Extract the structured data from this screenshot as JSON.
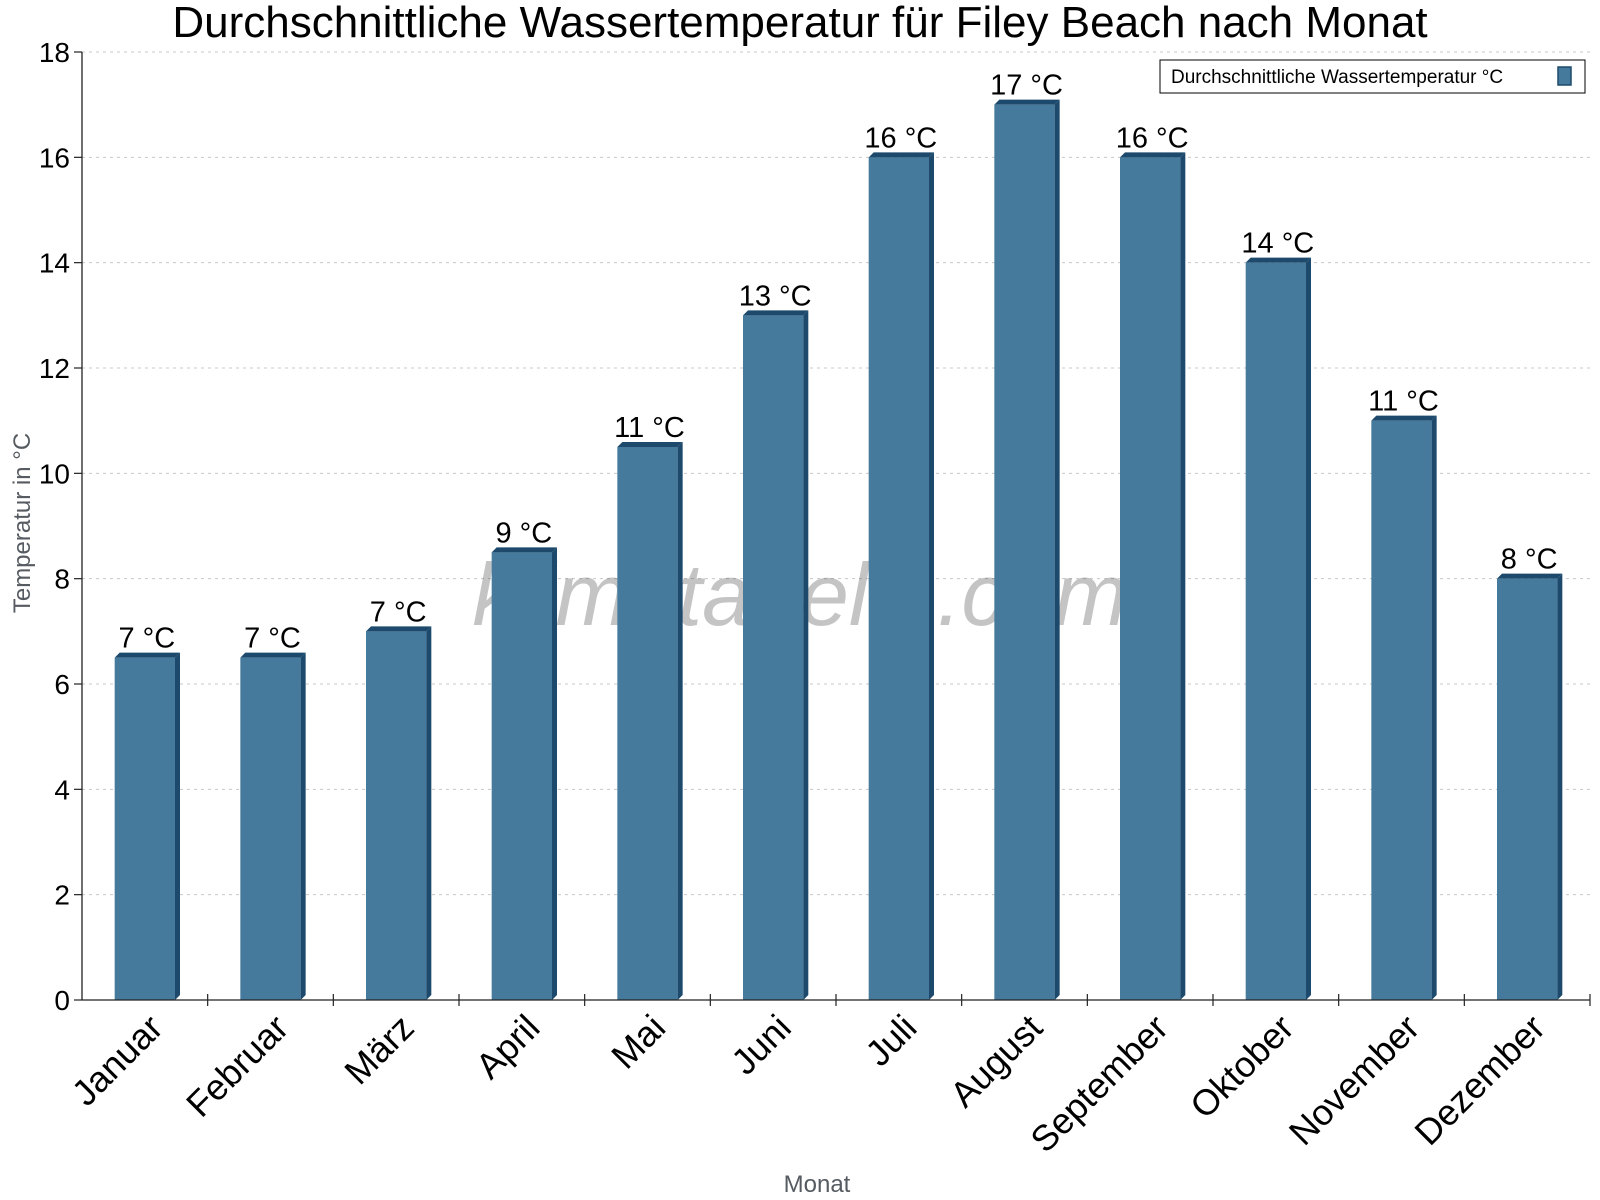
{
  "chart_data": {
    "type": "bar",
    "title": "Durchschnittliche Wassertemperatur für Filey Beach nach Monat",
    "xlabel": "Monat",
    "ylabel": "Temperatur in °C",
    "ylim": [
      0,
      18
    ],
    "yticks": [
      0,
      2,
      4,
      6,
      8,
      10,
      12,
      14,
      16,
      18
    ],
    "grid": true,
    "legend_position": "top-right",
    "categories": [
      "Januar",
      "Februar",
      "März",
      "April",
      "Mai",
      "Juni",
      "Juli",
      "August",
      "September",
      "Oktober",
      "November",
      "Dezember"
    ],
    "series": [
      {
        "name": "Durchschnittliche Wassertemperatur °C",
        "values": [
          6.5,
          6.5,
          7,
          8.5,
          10.5,
          13,
          16,
          17,
          16,
          14,
          11,
          8
        ],
        "labels": [
          "7 °C",
          "7 °C",
          "7 °C",
          "9 °C",
          "11 °C",
          "13 °C",
          "16 °C",
          "17 °C",
          "16 °C",
          "14 °C",
          "11 °C",
          "8 °C"
        ],
        "color": "#467a9c",
        "edge_color": "#1d4a6c"
      }
    ],
    "watermark": "klimatabelle.com"
  }
}
